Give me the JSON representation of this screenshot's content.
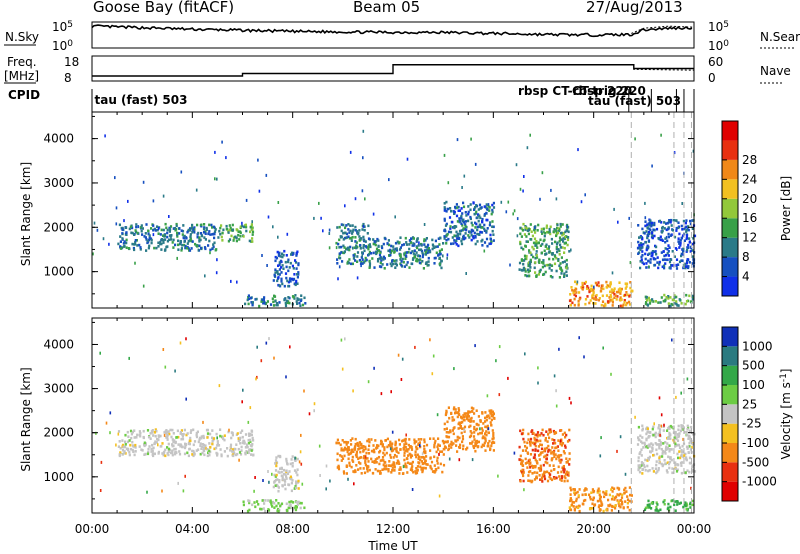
{
  "header": {
    "station": "Goose Bay (fitACF)",
    "beam": "Beam 05",
    "date": "27/Aug/2013"
  },
  "chart_data": [
    {
      "type": "line",
      "panel": "noise",
      "left_label": "N.Sky",
      "right_label": "N.Search",
      "left_ticks": [
        "10^5",
        "10^0"
      ],
      "right_ticks": [
        "10^5",
        "10^0"
      ],
      "series": [
        {
          "name": "N.Sky",
          "x": [
            0,
            2,
            4,
            6,
            8,
            10,
            12,
            14,
            16,
            18,
            20,
            21.5,
            22,
            23,
            24
          ],
          "y": [
            4.2,
            3.9,
            3.6,
            3.4,
            3.2,
            3.1,
            3.0,
            3.0,
            2.8,
            2.6,
            2.5,
            2.6,
            3.5,
            3.8,
            3.9
          ]
        },
        {
          "name": "N.Search",
          "x": [
            21.5,
            22,
            23,
            24
          ],
          "y": [
            2.8,
            3.8,
            4.2,
            4.0
          ]
        }
      ]
    },
    {
      "type": "line",
      "panel": "frequency",
      "left_label": "Freq. [MHz]",
      "right_label": "Nave",
      "left_ticks": [
        "18",
        "8"
      ],
      "right_ticks": [
        "60",
        "0"
      ],
      "series": [
        {
          "name": "Freq.",
          "x": [
            0,
            6,
            6,
            12,
            12,
            21.6,
            21.6,
            24
          ],
          "y": [
            10,
            10,
            11,
            11,
            14.5,
            14.5,
            13,
            13
          ]
        },
        {
          "name": "Nave",
          "x": [
            21.6,
            21.6,
            24
          ],
          "y": [
            40,
            28,
            26
          ]
        }
      ]
    },
    {
      "type": "table",
      "panel": "cpid",
      "label": "CPID",
      "entries": [
        {
          "t": 0.1,
          "text": "tau (fast) 503"
        },
        {
          "t": 16.9,
          "text": "rbsp CT-rbsp 220"
        },
        {
          "t": 19.6,
          "text": "CT-trig 220"
        },
        {
          "t": 19.8,
          "text": "tau (fast) 503"
        }
      ]
    },
    {
      "type": "heatmap",
      "panel": "power",
      "ylabel": "Slant Range [km]",
      "yticks": [
        1000,
        2000,
        3000,
        4000
      ],
      "ylim": [
        180,
        4600
      ],
      "colorbar_label": "Power [dB]",
      "colorbar_ticks": [
        4,
        8,
        12,
        16,
        20,
        24,
        28
      ],
      "colors": [
        "#1030e8",
        "#1650c0",
        "#2a7a88",
        "#38a048",
        "#92c83a",
        "#f2c020",
        "#f08818",
        "#e83010",
        "#e00000"
      ],
      "echo_regions": [
        {
          "t0": 1.0,
          "t1": 5.0,
          "r0": 1500,
          "r1": 2100,
          "value": 9
        },
        {
          "t0": 5.0,
          "t1": 6.4,
          "r0": 1700,
          "r1": 2100,
          "value": 14
        },
        {
          "t0": 7.2,
          "t1": 8.2,
          "r0": 700,
          "r1": 1500,
          "value": 7
        },
        {
          "t0": 6.0,
          "t1": 8.5,
          "r0": 250,
          "r1": 500,
          "value": 10
        },
        {
          "t0": 9.7,
          "t1": 11.0,
          "r0": 1200,
          "r1": 2100,
          "value": 10
        },
        {
          "t0": 11.0,
          "t1": 14.0,
          "r0": 1100,
          "r1": 1800,
          "value": 9
        },
        {
          "t0": 14.0,
          "t1": 16.0,
          "r0": 1600,
          "r1": 2600,
          "value": 8
        },
        {
          "t0": 17.0,
          "t1": 19.0,
          "r0": 900,
          "r1": 2100,
          "value": 13
        },
        {
          "t0": 19.0,
          "t1": 21.5,
          "r0": 250,
          "r1": 800,
          "value": 25
        },
        {
          "t0": 21.7,
          "t1": 24.0,
          "r0": 1100,
          "r1": 2200,
          "value": 6
        },
        {
          "t0": 22.0,
          "t1": 24.0,
          "r0": 250,
          "r1": 500,
          "value": 14
        }
      ]
    },
    {
      "type": "heatmap",
      "panel": "velocity",
      "ylabel": "Slant Range [km]",
      "xlabel": "Time UT",
      "xticks": [
        "00:00",
        "04:00",
        "08:00",
        "12:00",
        "16:00",
        "20:00",
        "00:00"
      ],
      "yticks": [
        1000,
        2000,
        3000,
        4000
      ],
      "ylim": [
        180,
        4600
      ],
      "colorbar_label": "Velocity [m s^-1]",
      "colorbar_ticks": [
        "1000",
        "500",
        "100",
        "25",
        "-25",
        "-100",
        "-500",
        "-1000"
      ],
      "colors": [
        "#1030b8",
        "#2a7a80",
        "#33a848",
        "#6ccc44",
        "#c4c4c4",
        "#f4c020",
        "#f48818",
        "#e83010",
        "#e00000"
      ],
      "echo_regions": [
        {
          "t0": 1.0,
          "t1": 6.4,
          "r0": 1500,
          "r1": 2100,
          "value": 0
        },
        {
          "t0": 7.2,
          "t1": 8.2,
          "r0": 700,
          "r1": 1500,
          "value": 0
        },
        {
          "t0": 6.0,
          "t1": 8.5,
          "r0": 250,
          "r1": 500,
          "value": 30
        },
        {
          "t0": 9.7,
          "t1": 14.0,
          "r0": 1100,
          "r1": 1900,
          "value": -300
        },
        {
          "t0": 14.0,
          "t1": 16.0,
          "r0": 1600,
          "r1": 2600,
          "value": -300
        },
        {
          "t0": 17.0,
          "t1": 19.0,
          "r0": 900,
          "r1": 2100,
          "value": -400
        },
        {
          "t0": 19.0,
          "t1": 21.5,
          "r0": 250,
          "r1": 800,
          "value": -150
        },
        {
          "t0": 21.7,
          "t1": 24.0,
          "r0": 1100,
          "r1": 2200,
          "value": 0
        },
        {
          "t0": 22.0,
          "t1": 24.0,
          "r0": 250,
          "r1": 500,
          "value": 120
        }
      ]
    }
  ]
}
